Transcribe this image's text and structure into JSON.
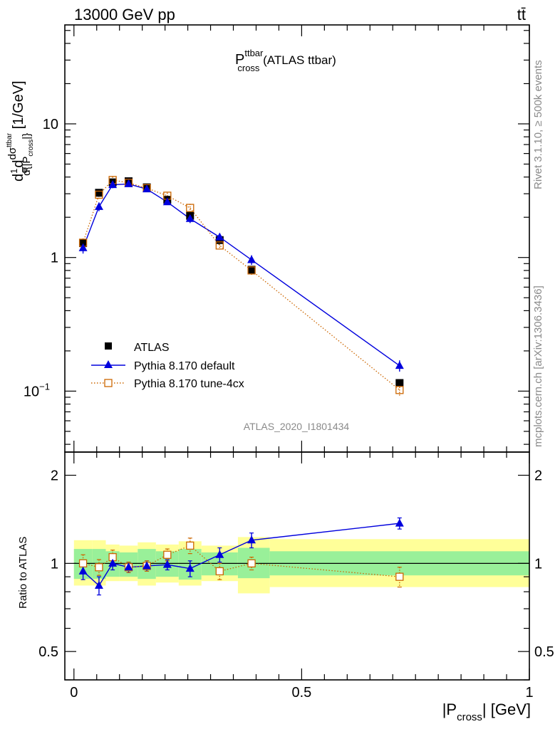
{
  "header": {
    "energy_label": "13000 GeV pp",
    "process_label": "tt̄"
  },
  "side_texts": {
    "rivet": "Rivet 3.1.10, ≥ 500k events",
    "mcplots": "mcplots.cern.ch [arXiv:1306.3436]"
  },
  "analysis_tag": "ATLAS_2020_I1801434",
  "chart_data": [
    {
      "type": "line",
      "title": {
        "main": "P",
        "sup": "ttbar",
        "sub": "cross",
        "suffix": " (ATLAS ttbar)"
      },
      "ylabel": "dσ^{ttbar}/d{|P_cross|} · 1/σ [1/GeV]",
      "yscale": "log",
      "ylim": [
        0.035,
        55
      ],
      "xlim": [
        -0.02,
        1.0
      ],
      "y_ticks": [
        {
          "value": 0.1,
          "base": "10",
          "exp": "−1"
        },
        {
          "value": 1,
          "label": "1"
        },
        {
          "value": 10,
          "label": "10"
        }
      ],
      "legend_position": "bottom-left",
      "legend": [
        "ATLAS",
        "Pythia 8.170 default",
        "Pythia 8.170 tune-4cx"
      ],
      "series": [
        {
          "name": "ATLAS",
          "color": "#000000",
          "marker": "filled-square",
          "x": [
            0.02,
            0.055,
            0.085,
            0.12,
            0.16,
            0.205,
            0.255,
            0.32,
            0.39,
            0.715
          ],
          "y": [
            1.28,
            3.05,
            3.65,
            3.72,
            3.35,
            2.7,
            2.05,
            1.35,
            0.81,
            0.115
          ]
        },
        {
          "name": "Pythia 8.170 default",
          "color": "#0000dd",
          "marker": "filled-triangle",
          "line": "solid",
          "x": [
            0.02,
            0.055,
            0.085,
            0.12,
            0.16,
            0.205,
            0.255,
            0.32,
            0.39,
            0.715
          ],
          "y": [
            1.18,
            2.4,
            3.5,
            3.55,
            3.25,
            2.6,
            1.95,
            1.42,
            0.96,
            0.155
          ],
          "err": [
            0.11,
            0.18,
            0.2,
            0.17,
            0.15,
            0.13,
            0.14,
            0.09,
            0.08,
            0.015
          ]
        },
        {
          "name": "Pythia 8.170 tune-4cx",
          "color": "#cc6600",
          "marker": "open-square",
          "line": "dotted",
          "x": [
            0.02,
            0.055,
            0.085,
            0.12,
            0.16,
            0.205,
            0.255,
            0.32,
            0.39,
            0.715
          ],
          "y": [
            1.29,
            2.95,
            3.8,
            3.62,
            3.3,
            2.9,
            2.35,
            1.23,
            0.8,
            0.102
          ],
          "err": [
            0.1,
            0.2,
            0.22,
            0.18,
            0.14,
            0.15,
            0.17,
            0.08,
            0.06,
            0.01
          ]
        }
      ]
    },
    {
      "type": "line",
      "ylabel": "Ratio to ATLAS",
      "xlabel": {
        "main": "|P",
        "sub": "cross",
        "suffix": "| [GeV]"
      },
      "yscale": "log",
      "ylim": [
        0.4,
        2.4
      ],
      "xlim": [
        -0.02,
        1.0
      ],
      "x_ticks": [
        {
          "value": 0,
          "label": "0"
        },
        {
          "value": 0.5,
          "label": "0.5"
        },
        {
          "value": 1,
          "label": "1"
        }
      ],
      "y_ticks": [
        {
          "value": 0.5,
          "label": "0.5"
        },
        {
          "value": 1,
          "label": "1"
        },
        {
          "value": 2,
          "label": "2"
        }
      ],
      "reference_line": 1,
      "bins": [
        0,
        0.04,
        0.07,
        0.1,
        0.14,
        0.18,
        0.23,
        0.28,
        0.36,
        0.43,
        1.0
      ],
      "band_inner": [
        [
          0.885,
          1.12
        ],
        [
          0.885,
          1.12
        ],
        [
          0.9,
          1.1
        ],
        [
          0.9,
          1.09
        ],
        [
          0.885,
          1.12
        ],
        [
          0.9,
          1.1
        ],
        [
          0.88,
          1.12
        ],
        [
          0.91,
          1.09
        ],
        [
          0.89,
          1.13
        ],
        [
          0.91,
          1.1
        ]
      ],
      "band_outer": [
        [
          0.84,
          1.2
        ],
        [
          0.84,
          1.2
        ],
        [
          0.87,
          1.16
        ],
        [
          0.87,
          1.15
        ],
        [
          0.84,
          1.18
        ],
        [
          0.86,
          1.16
        ],
        [
          0.84,
          1.19
        ],
        [
          0.87,
          1.15
        ],
        [
          0.79,
          1.23
        ],
        [
          0.83,
          1.21
        ]
      ],
      "band_colors": {
        "inner": "#99f099",
        "outer": "#ffff99"
      },
      "series": [
        {
          "name": "Pythia 8.170 default",
          "color": "#0000dd",
          "x": [
            0.02,
            0.055,
            0.085,
            0.12,
            0.16,
            0.205,
            0.255,
            0.32,
            0.39,
            0.715
          ],
          "y": [
            0.94,
            0.84,
            1.0,
            0.97,
            0.98,
            0.99,
            0.96,
            1.07,
            1.2,
            1.37
          ],
          "err": [
            0.06,
            0.06,
            0.05,
            0.04,
            0.04,
            0.04,
            0.06,
            0.06,
            0.07,
            0.06
          ]
        },
        {
          "name": "Pythia 8.170 tune-4cx",
          "color": "#cc6600",
          "x": [
            0.02,
            0.055,
            0.085,
            0.12,
            0.16,
            0.205,
            0.255,
            0.32,
            0.39,
            0.715
          ],
          "y": [
            1.0,
            0.97,
            1.05,
            0.97,
            0.98,
            1.07,
            1.15,
            0.94,
            1.0,
            0.9
          ],
          "err": [
            0.07,
            0.06,
            0.06,
            0.04,
            0.04,
            0.05,
            0.07,
            0.06,
            0.05,
            0.07
          ]
        }
      ]
    }
  ]
}
